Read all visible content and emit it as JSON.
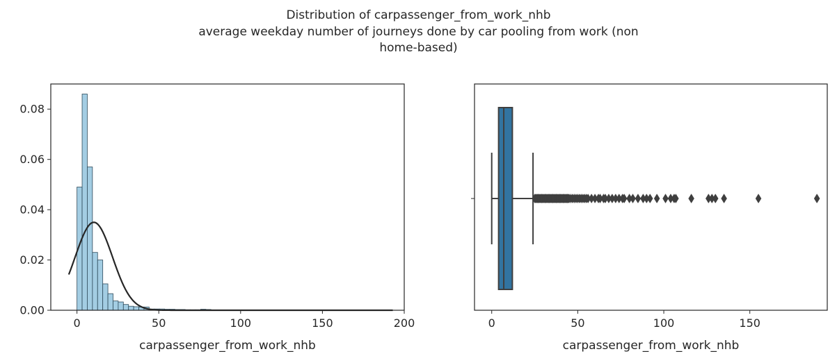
{
  "figure": {
    "title_lines": [
      "Distribution of carpassenger_from_work_nhb",
      "average weekday number of journeys done by car pooling from work (non",
      "home-based)"
    ]
  },
  "chart_data": [
    {
      "type": "histogram",
      "xlabel": "carpassenger_from_work_nhb",
      "ylabel": "",
      "xlim": [
        -16,
        200
      ],
      "ylim": [
        0,
        0.09
      ],
      "xticks": [
        0,
        50,
        100,
        150,
        200
      ],
      "yticks": [
        0.0,
        0.02,
        0.04,
        0.06,
        0.08
      ],
      "ytick_labels": [
        "0.00",
        "0.02",
        "0.04",
        "0.06",
        "0.08"
      ],
      "bin_width": 3.15,
      "bin_start": 0,
      "densities": [
        0.049,
        0.086,
        0.057,
        0.023,
        0.02,
        0.0105,
        0.0066,
        0.0037,
        0.0033,
        0.0023,
        0.0016,
        0.0014,
        0.0013,
        0.0013,
        0.0005,
        0.0005,
        0.0005,
        0.0004,
        0.0004,
        0.0003,
        0.0003,
        0.0002,
        0.0002,
        0.0002,
        0.0004,
        0.0003,
        0.0001,
        0.0001,
        0.0001,
        0.0001,
        0.0001,
        0.0001,
        0.0001,
        0.0001,
        0.0001,
        0.0001,
        0.0001,
        5e-05,
        5e-05,
        5e-05,
        5e-05,
        5e-05,
        5e-05,
        5e-05,
        5e-05,
        5e-05,
        5e-05,
        5e-05,
        5e-05,
        5e-05,
        5e-05,
        5e-05,
        5e-05,
        5e-05,
        5e-05,
        5e-05,
        5e-05,
        5e-05,
        5e-05,
        5e-05,
        5e-05
      ],
      "kde": {
        "type": "normal",
        "mean": 10.3,
        "sd": 11.4,
        "x_range": [
          -5,
          193
        ]
      },
      "bar_color": "#9ecae1",
      "line_color": "#262626"
    },
    {
      "type": "box",
      "xlabel": "carpassenger_from_work_nhb",
      "xlim": [
        -10,
        195
      ],
      "xticks": [
        0,
        50,
        100,
        150
      ],
      "whisker_low": 0,
      "q1": 4,
      "median": 7,
      "q3": 12,
      "whisker_high": 24,
      "outliers": [
        25,
        25.5,
        26,
        26.5,
        27,
        27.5,
        28,
        28.5,
        29,
        29.5,
        30,
        30.5,
        31,
        31.5,
        32,
        32.5,
        33,
        33.5,
        34,
        34.5,
        35,
        35.5,
        36,
        36.5,
        37,
        37.5,
        38,
        38.5,
        39,
        39.5,
        40,
        40.5,
        41,
        41.5,
        42,
        42.5,
        43,
        43.5,
        44,
        44.5,
        45,
        46,
        47,
        48,
        49,
        50,
        51,
        52,
        53,
        54,
        55,
        56,
        58,
        60,
        62,
        63,
        65,
        66,
        68,
        70,
        72,
        74,
        76,
        77,
        80,
        82,
        85,
        88,
        90,
        92,
        96,
        101,
        104,
        106,
        107,
        116,
        126,
        128,
        130,
        135,
        155,
        189
      ],
      "box_color": "#3274a1",
      "line_color": "#3f3f3f"
    }
  ]
}
